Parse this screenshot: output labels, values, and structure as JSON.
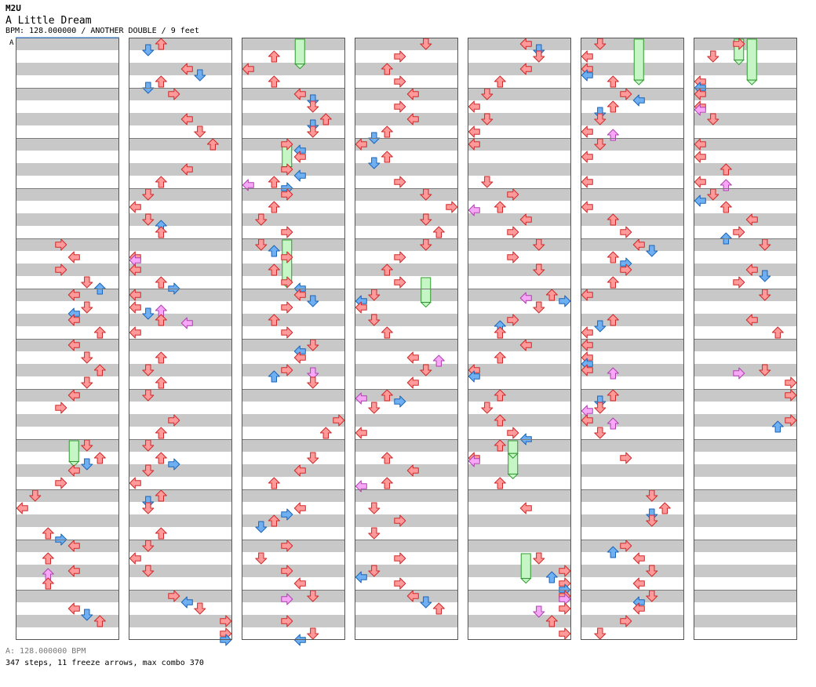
{
  "header": {
    "artist": "M2U",
    "title": "A Little Dream",
    "info": "BPM: 128.000000 / ANOTHER DOUBLE / 9 feet"
  },
  "bpm_marker": "A",
  "footer": {
    "bpm": "A: 128.000000 BPM",
    "stats": "347 steps, 11 freeze arrows, max combo 370"
  },
  "colors": {
    "stripe": "#c8c8c8",
    "border": "#555555",
    "bpm_line": "#4a8bd8",
    "quarter_fill": "#ff9a9a",
    "quarter_stroke": "#d02828",
    "eighth_fill": "#6fb0f2",
    "eighth_stroke": "#1c64b8",
    "sixteenth_fill": "#f6a8f6",
    "sixteenth_stroke": "#b040b0",
    "freeze_fill": "#c6f6c6",
    "freeze_stroke": "#2e9a2e"
  },
  "chart": {
    "columns": 7,
    "lanes": 8,
    "measures_per_column": 12,
    "beats_per_measure": 4,
    "direction_order": [
      "left",
      "down",
      "up",
      "right"
    ],
    "freeze_arrows": [
      {
        "column": 0,
        "lane": 4,
        "beat": 32.0,
        "length": 0.8
      },
      {
        "column": 2,
        "lane": 4,
        "beat": 0.0,
        "length": 1.0
      },
      {
        "column": 2,
        "lane": 3,
        "beat": 8.5,
        "length": 0.8
      },
      {
        "column": 2,
        "lane": 3,
        "beat": 16.0,
        "length": 1.9
      },
      {
        "column": 3,
        "lane": 5,
        "beat": 19.0,
        "length": 1.0
      },
      {
        "column": 4,
        "lane": 3,
        "beat": 33.0,
        "length": 0.8
      },
      {
        "column": 4,
        "lane": 4,
        "beat": 41.0,
        "length": 1.0
      },
      {
        "column": 5,
        "lane": 4,
        "beat": 0.0,
        "length": 1.8
      },
      {
        "column": 6,
        "lane": 3,
        "beat": 0.0,
        "length": 0.8
      },
      {
        "column": 6,
        "lane": 4,
        "beat": 0.0,
        "length": 1.8
      },
      {
        "column": 4,
        "lane": 3,
        "beat": 32.0,
        "length": 0.4
      }
    ]
  }
}
